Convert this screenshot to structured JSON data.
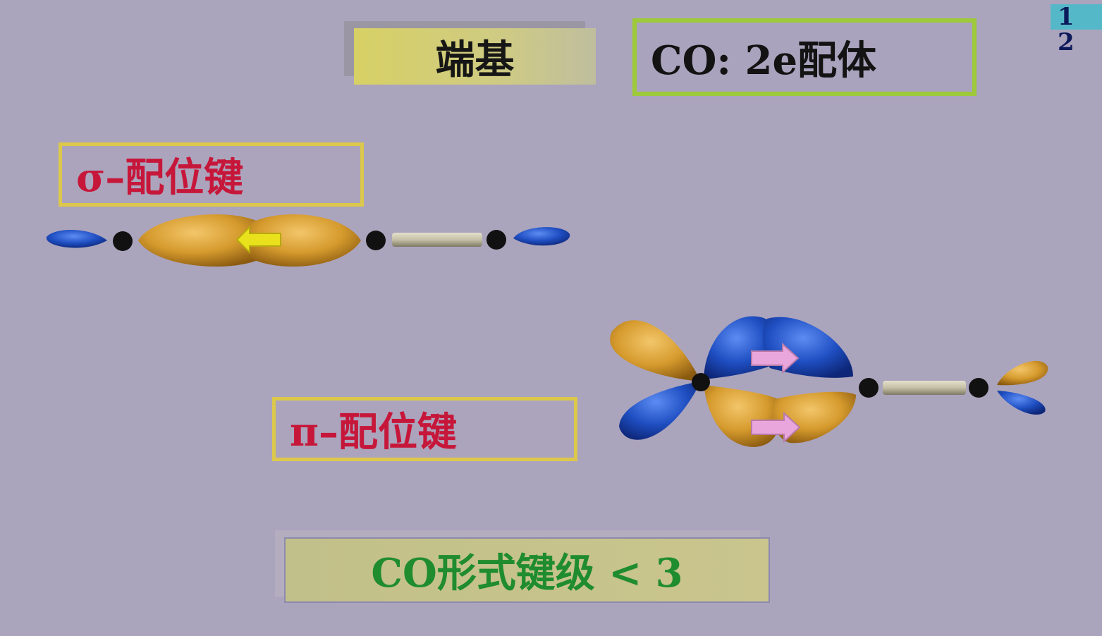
{
  "page_number": "1 2",
  "title": "端基",
  "co_label": "CO:  2e配体",
  "sigma_label": "σ–配位键",
  "pi_label": "π–配位键",
  "bond_order_label": "CO形式键级 < 3",
  "colors": {
    "background": "#aba4bd",
    "orbital_orange": "#d39b2e",
    "orbital_blue": "#1f4fc2",
    "sigma_arrow": "#e8e11c",
    "pi_arrow": "#e9a6dc",
    "label_red": "#c6173a",
    "label_green": "#1f8c2e"
  }
}
